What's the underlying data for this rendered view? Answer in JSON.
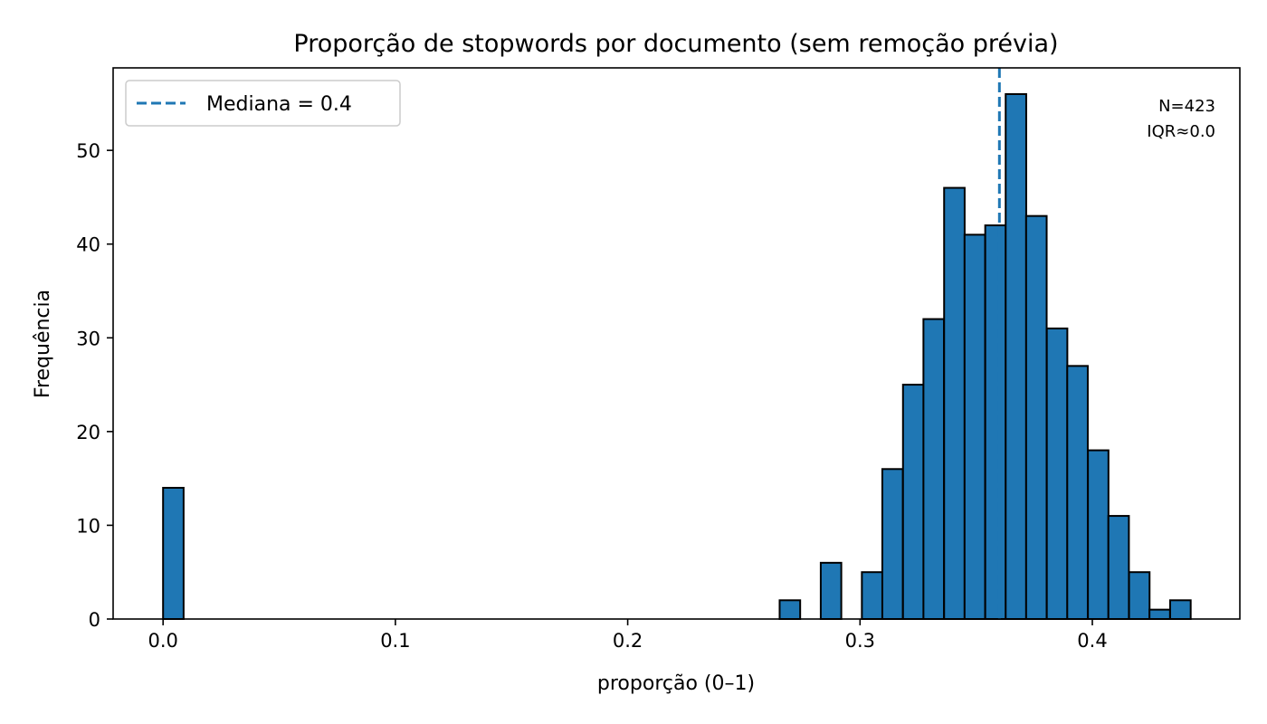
{
  "chart_data": {
    "type": "bar",
    "title": "Proporção de stopwords por documento (sem remoção prévia)",
    "xlabel": "proporção (0–1)",
    "ylabel": "Frequência",
    "xlim": [
      -0.0215,
      0.4635
    ],
    "ylim": [
      0,
      58.8
    ],
    "xticks": [
      0.0,
      0.1,
      0.2,
      0.3,
      0.4
    ],
    "xtick_labels": [
      "0.0",
      "0.1",
      "0.2",
      "0.3",
      "0.4"
    ],
    "yticks": [
      0,
      10,
      20,
      30,
      40,
      50
    ],
    "ytick_labels": [
      "0",
      "10",
      "20",
      "30",
      "40",
      "50"
    ],
    "bin_width": 0.00884,
    "bins": [
      {
        "x0": 0.0,
        "count": 14
      },
      {
        "x0": 0.2654,
        "count": 2
      },
      {
        "x0": 0.2831,
        "count": 6
      },
      {
        "x0": 0.3008,
        "count": 5
      },
      {
        "x0": 0.3096,
        "count": 16
      },
      {
        "x0": 0.3185,
        "count": 25
      },
      {
        "x0": 0.3273,
        "count": 32
      },
      {
        "x0": 0.3362,
        "count": 46
      },
      {
        "x0": 0.345,
        "count": 41
      },
      {
        "x0": 0.3539,
        "count": 42
      },
      {
        "x0": 0.3627,
        "count": 56
      },
      {
        "x0": 0.3715,
        "count": 43
      },
      {
        "x0": 0.3804,
        "count": 31
      },
      {
        "x0": 0.3892,
        "count": 27
      },
      {
        "x0": 0.3981,
        "count": 18
      },
      {
        "x0": 0.4069,
        "count": 11
      },
      {
        "x0": 0.4158,
        "count": 5
      },
      {
        "x0": 0.4246,
        "count": 1
      },
      {
        "x0": 0.4335,
        "count": 2
      }
    ],
    "median_line": {
      "x": 0.36,
      "label": "Mediana = 0.4"
    },
    "legend_position": "top-left",
    "annotation": {
      "line1": "N=423",
      "line2": "IQR≈0.0"
    },
    "grid": false,
    "colors": {
      "bar": "#1f77b4",
      "edge": "#000000",
      "median": "#1f77b4"
    }
  }
}
